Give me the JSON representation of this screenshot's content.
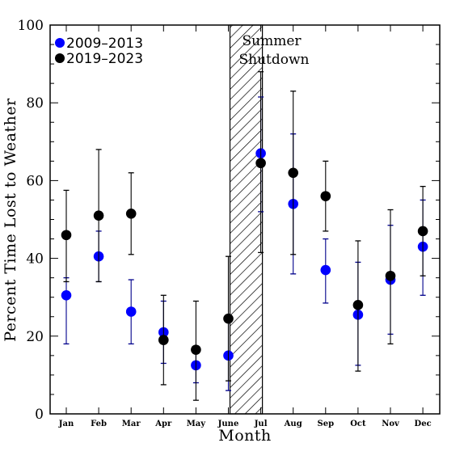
{
  "chart_data": {
    "type": "scatter",
    "xlabel": "Month",
    "ylabel": "Percent Time Lost to Weather",
    "ylim": [
      0,
      100
    ],
    "yticks": [
      0,
      20,
      40,
      60,
      80,
      100
    ],
    "categories": [
      "Jan",
      "Feb",
      "Mar",
      "Apr",
      "May",
      "June",
      "Jul",
      "Aug",
      "Sep",
      "Oct",
      "Nov",
      "Dec"
    ],
    "annotation": {
      "line1": "Summer",
      "line2": "Shutdown",
      "x_start": 6.05,
      "x_end": 7.05
    },
    "legend_position": "top-left",
    "series": [
      {
        "name": "2009–2013",
        "color": "#0000ff",
        "errcolor": "#00008b",
        "points": [
          {
            "x": 1,
            "y": 30.5,
            "lo": 18,
            "hi": 35
          },
          {
            "x": 2,
            "y": 40.5,
            "lo": 34,
            "hi": 47
          },
          {
            "x": 3,
            "y": 26.3,
            "lo": 18,
            "hi": 34.5
          },
          {
            "x": 4,
            "y": 21,
            "lo": 13,
            "hi": 29
          },
          {
            "x": 5,
            "y": 12.5,
            "lo": 8,
            "hi": 17
          },
          {
            "x": 6,
            "y": 15,
            "lo": 6,
            "hi": 24
          },
          {
            "x": 7,
            "y": 67,
            "lo": 52,
            "hi": 81.5
          },
          {
            "x": 8,
            "y": 54,
            "lo": 36,
            "hi": 72
          },
          {
            "x": 9,
            "y": 37,
            "lo": 28.5,
            "hi": 45
          },
          {
            "x": 10,
            "y": 25.5,
            "lo": 12.5,
            "hi": 39
          },
          {
            "x": 11,
            "y": 34.5,
            "lo": 20.5,
            "hi": 48.5
          },
          {
            "x": 12,
            "y": 43,
            "lo": 30.5,
            "hi": 55
          }
        ]
      },
      {
        "name": "2019–2023",
        "color": "#000000",
        "errcolor": "#000000",
        "points": [
          {
            "x": 1,
            "y": 46,
            "lo": 34,
            "hi": 57.5
          },
          {
            "x": 2,
            "y": 51,
            "lo": 34,
            "hi": 68
          },
          {
            "x": 3,
            "y": 51.5,
            "lo": 41,
            "hi": 62
          },
          {
            "x": 4,
            "y": 19,
            "lo": 7.5,
            "hi": 30.5
          },
          {
            "x": 5,
            "y": 16.5,
            "lo": 3.5,
            "hi": 29
          },
          {
            "x": 6,
            "y": 24.5,
            "lo": 8.5,
            "hi": 40.5
          },
          {
            "x": 7,
            "y": 64.5,
            "lo": 41.5,
            "hi": 88
          },
          {
            "x": 8,
            "y": 62,
            "lo": 41,
            "hi": 83
          },
          {
            "x": 9,
            "y": 56,
            "lo": 47,
            "hi": 65
          },
          {
            "x": 10,
            "y": 28,
            "lo": 11,
            "hi": 44.5
          },
          {
            "x": 11,
            "y": 35.5,
            "lo": 18,
            "hi": 52.5
          },
          {
            "x": 12,
            "y": 47,
            "lo": 35.5,
            "hi": 58.5
          }
        ]
      }
    ]
  }
}
